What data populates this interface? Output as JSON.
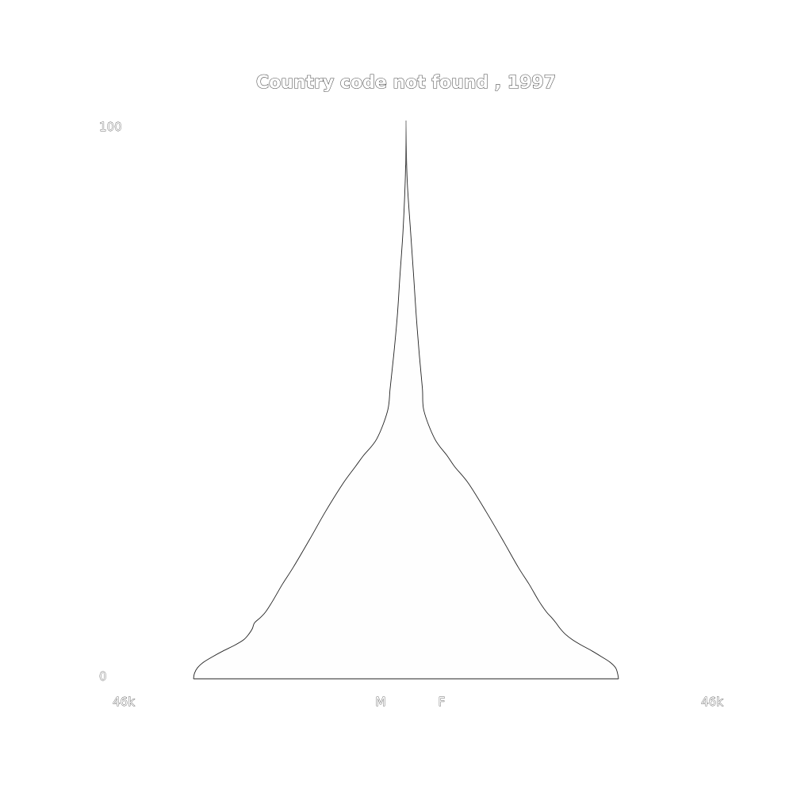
{
  "chart_data": {
    "type": "area",
    "title": "Country code not found , 1997",
    "xlabel": "",
    "ylabel": "",
    "x_tick_labels": {
      "left": "46k",
      "male": "M",
      "female": "F",
      "right": "46k"
    },
    "y_tick_labels": [
      "0",
      "100"
    ],
    "ylim": [
      0,
      100
    ],
    "xlim": [
      -46000,
      46000
    ],
    "grid": false,
    "legend": "none",
    "series": [
      {
        "name": "M",
        "side": "left",
        "points": [
          [
            0,
            41500
          ],
          [
            1,
            41300
          ],
          [
            2,
            40700
          ],
          [
            3,
            39500
          ],
          [
            4,
            37700
          ],
          [
            5,
            35700
          ],
          [
            6,
            33500
          ],
          [
            7,
            31700
          ],
          [
            8,
            30700
          ],
          [
            9,
            30000
          ],
          [
            10,
            29600
          ],
          [
            11,
            28400
          ],
          [
            12,
            27400
          ],
          [
            14,
            26000
          ],
          [
            17,
            24100
          ],
          [
            20,
            22000
          ],
          [
            25,
            18800
          ],
          [
            30,
            15700
          ],
          [
            35,
            12300
          ],
          [
            38,
            9900
          ],
          [
            40,
            8300
          ],
          [
            43,
            5700
          ],
          [
            48,
            3600
          ],
          [
            52,
            3100
          ],
          [
            58,
            2400
          ],
          [
            65,
            1700
          ],
          [
            72,
            1200
          ],
          [
            80,
            600
          ],
          [
            88,
            200
          ],
          [
            93,
            60
          ],
          [
            100,
            0
          ]
        ]
      },
      {
        "name": "F",
        "side": "right",
        "points": [
          [
            0,
            41500
          ],
          [
            1,
            41300
          ],
          [
            2,
            40900
          ],
          [
            3,
            39800
          ],
          [
            4,
            38100
          ],
          [
            5,
            36300
          ],
          [
            6,
            34300
          ],
          [
            7,
            32500
          ],
          [
            8,
            31100
          ],
          [
            9,
            30100
          ],
          [
            10,
            29300
          ],
          [
            11,
            28400
          ],
          [
            12,
            27400
          ],
          [
            14,
            25900
          ],
          [
            17,
            24000
          ],
          [
            20,
            21900
          ],
          [
            25,
            18800
          ],
          [
            30,
            15600
          ],
          [
            35,
            12200
          ],
          [
            38,
            9500
          ],
          [
            40,
            8000
          ],
          [
            43,
            5600
          ],
          [
            48,
            3500
          ],
          [
            52,
            3200
          ],
          [
            58,
            2600
          ],
          [
            65,
            2000
          ],
          [
            72,
            1500
          ],
          [
            80,
            900
          ],
          [
            88,
            300
          ],
          [
            93,
            100
          ],
          [
            100,
            0
          ]
        ]
      }
    ],
    "colors": {
      "fill": "#fefefe",
      "stroke": "#222222",
      "text_fill": "#ffffff",
      "text_stroke": "#333333"
    }
  }
}
